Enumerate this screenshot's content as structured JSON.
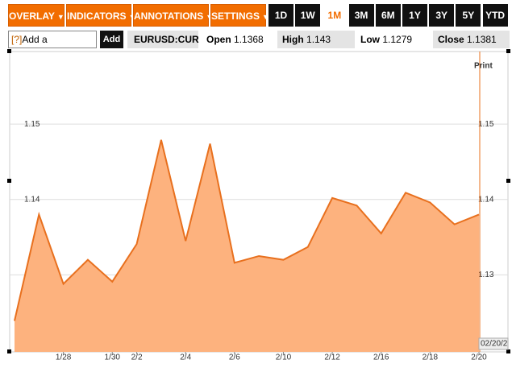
{
  "toolbar": {
    "menus": [
      "OVERLAY",
      "INDICATORS",
      "ANNOTATIONS",
      "SETTINGS"
    ],
    "ranges": [
      "1D",
      "1W",
      "1M",
      "3M",
      "6M",
      "1Y",
      "3Y",
      "5Y",
      "YTD"
    ]
  },
  "quote": {
    "help": "[?]",
    "comparison": "Add a Comparison",
    "add": "Add",
    "symbol": "EURUSD:CUR",
    "open_label": "Open",
    "open": 1.1368,
    "high_label": "High",
    "high": 1.143,
    "low_label": "Low",
    "low": 1.1279,
    "close_label": "Close",
    "close": 1.1381
  },
  "print": "Print",
  "last_date": "02/20/2",
  "chart_data": {
    "type": "area",
    "categories": [
      null,
      null,
      "1/28",
      null,
      "1/30",
      "2/2",
      null,
      "2/4",
      null,
      "2/6",
      null,
      "2/10",
      null,
      "2/12",
      null,
      "2/16",
      null,
      "2/18",
      null,
      "2/20"
    ],
    "values": [
      1.1239,
      1.138,
      1.1288,
      1.132,
      1.1291,
      1.1341,
      1.1479,
      1.1345,
      1.1474,
      1.1316,
      1.1325,
      1.132,
      1.1337,
      1.1402,
      1.1392,
      1.1355,
      1.1409,
      1.1396,
      1.1367,
      1.138
    ],
    "color": "#e8701e",
    "ylim": [
      1.12,
      1.16
    ],
    "yticks": [
      1.13,
      1.14,
      1.15
    ],
    "grid": true
  }
}
